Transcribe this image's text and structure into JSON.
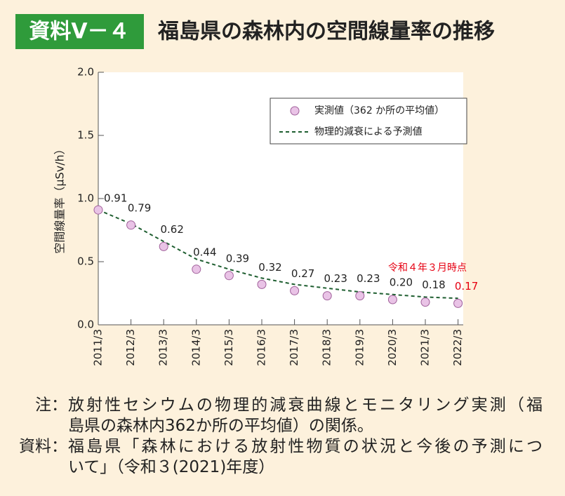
{
  "header": {
    "badge": "資料Ⅴ－４",
    "title": "福島県の森林内の空間線量率の推移"
  },
  "chart_data": {
    "type": "line",
    "ylabel": "空間線量率（μSv/h）",
    "categories": [
      "2011/3",
      "2012/3",
      "2013/3",
      "2014/3",
      "2015/3",
      "2016/3",
      "2017/3",
      "2018/3",
      "2019/3",
      "2020/3",
      "2021/3",
      "2022/3"
    ],
    "series": [
      {
        "name": "実測値（362 か所の平均値）",
        "style": "markers",
        "color": "#e9c3e6",
        "edgecolor": "#a0609a",
        "values": [
          0.91,
          0.79,
          0.62,
          0.44,
          0.39,
          0.32,
          0.27,
          0.23,
          0.23,
          0.2,
          0.18,
          0.17
        ],
        "value_labels": [
          "0.91",
          "0.79",
          "0.62",
          "0.44",
          "0.39",
          "0.32",
          "0.27",
          "0.23",
          "0.23",
          "0.20",
          "0.18",
          "0.17"
        ],
        "highlight_color": "#e60012"
      },
      {
        "name": "物理的減衰による予測値",
        "style": "dashed",
        "color": "#1e5e30",
        "values": [
          0.91,
          0.8,
          0.66,
          0.52,
          0.44,
          0.37,
          0.32,
          0.29,
          0.26,
          0.24,
          0.22,
          0.21
        ]
      }
    ],
    "ylim": [
      0,
      2
    ],
    "yticks": [
      {
        "value": 0,
        "label": "0.0"
      },
      0.5,
      {
        "value": 1,
        "label": "1.0"
      },
      1.5,
      {
        "value": 2,
        "label": "2.0"
      }
    ],
    "legend": "upper right",
    "annotation": "令和４年３月時点"
  },
  "notes": [
    {
      "label": "注：",
      "lines": [
        "放射性セシウムの物理的減衰曲線とモニタリング実測（福",
        "島県の森林内362か所の平均値）の関係。"
      ]
    },
    {
      "label": "資料：",
      "lines": [
        "福島県「森林における放射性物質の状況と今後の予測につ",
        "いて」（令和３(2021)年度）"
      ]
    }
  ]
}
